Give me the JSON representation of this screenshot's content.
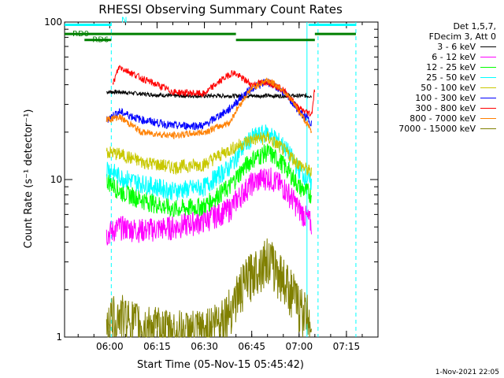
{
  "chart_data": {
    "type": "line",
    "title": "RHESSI Observing Summary Count Rates",
    "xlabel": "Start Time (05-Nov-15 05:45:42)",
    "ylabel": "Count Rate (s⁻¹ detector⁻¹)",
    "x_ticks": [
      "06:00",
      "06:15",
      "06:30",
      "06:45",
      "07:00",
      "07:15"
    ],
    "y_ticks": [
      "1",
      "10",
      "100"
    ],
    "y_scale": "log",
    "ylim": [
      1,
      100
    ],
    "xlim": [
      "05:45:42",
      "07:25:00"
    ],
    "legend_placement": "right",
    "legend_header": [
      "Det 1,5,7,",
      "FDecim 3, Att 0"
    ],
    "series": [
      {
        "name": "3 - 6 keV",
        "color": "#000000",
        "points": [
          [
            "05:59",
            36
          ],
          [
            "06:03",
            36
          ],
          [
            "06:10",
            35
          ],
          [
            "06:20",
            34
          ],
          [
            "06:30",
            34
          ],
          [
            "06:40",
            34
          ],
          [
            "06:50",
            34
          ],
          [
            "07:00",
            34
          ],
          [
            "07:04",
            34
          ]
        ]
      },
      {
        "name": "6 - 12 keV",
        "color": "#ff00ff",
        "points": [
          [
            "05:59",
            4.5
          ],
          [
            "06:03",
            5.0
          ],
          [
            "06:10",
            4.8
          ],
          [
            "06:20",
            5.0
          ],
          [
            "06:30",
            5.5
          ],
          [
            "06:38",
            6.5
          ],
          [
            "06:45",
            9.5
          ],
          [
            "06:50",
            10.5
          ],
          [
            "06:55",
            9.0
          ],
          [
            "07:00",
            6.5
          ],
          [
            "07:04",
            5.2
          ]
        ]
      },
      {
        "name": "12 - 25 keV",
        "color": "#00ff00",
        "points": [
          [
            "05:59",
            10
          ],
          [
            "06:03",
            8.5
          ],
          [
            "06:10",
            7.5
          ],
          [
            "06:20",
            6.5
          ],
          [
            "06:30",
            6.8
          ],
          [
            "06:38",
            9.0
          ],
          [
            "06:45",
            13.5
          ],
          [
            "06:50",
            15.0
          ],
          [
            "06:55",
            12.5
          ],
          [
            "07:00",
            9.0
          ],
          [
            "07:04",
            8.0
          ]
        ]
      },
      {
        "name": "25 - 50 keV",
        "color": "#00ffff",
        "points": [
          [
            "05:59",
            12
          ],
          [
            "06:03",
            10.5
          ],
          [
            "06:10",
            9.5
          ],
          [
            "06:20",
            8.5
          ],
          [
            "06:30",
            9.0
          ],
          [
            "06:38",
            12.0
          ],
          [
            "06:45",
            18.5
          ],
          [
            "06:50",
            20.0
          ],
          [
            "06:55",
            16.5
          ],
          [
            "07:00",
            11.5
          ],
          [
            "07:04",
            9.5
          ]
        ]
      },
      {
        "name": "50 - 100 keV",
        "color": "#c8c800",
        "points": [
          [
            "05:59",
            15
          ],
          [
            "06:03",
            14.5
          ],
          [
            "06:10",
            13.0
          ],
          [
            "06:20",
            12.0
          ],
          [
            "06:30",
            12.5
          ],
          [
            "06:38",
            15.5
          ],
          [
            "06:45",
            18.0
          ],
          [
            "06:50",
            18.5
          ],
          [
            "06:55",
            15.5
          ],
          [
            "07:00",
            12.5
          ],
          [
            "07:04",
            11.0
          ]
        ]
      },
      {
        "name": "100 - 300 keV",
        "color": "#0000ff",
        "points": [
          [
            "05:59",
            24
          ],
          [
            "06:03",
            27
          ],
          [
            "06:10",
            24
          ],
          [
            "06:20",
            22
          ],
          [
            "06:30",
            22
          ],
          [
            "06:38",
            28
          ],
          [
            "06:45",
            38
          ],
          [
            "06:50",
            42
          ],
          [
            "06:55",
            36
          ],
          [
            "07:00",
            27
          ],
          [
            "07:04",
            23
          ]
        ]
      },
      {
        "name": "300 - 800 keV",
        "color": "#ff0000",
        "points": [
          [
            "06:01",
            40
          ],
          [
            "06:03",
            52
          ],
          [
            "06:10",
            44
          ],
          [
            "06:20",
            36
          ],
          [
            "06:30",
            35
          ],
          [
            "06:39",
            48
          ],
          [
            "06:45",
            40
          ],
          [
            "06:50",
            42
          ],
          [
            "06:55",
            37
          ],
          [
            "07:00",
            28
          ],
          [
            "07:04",
            26
          ],
          [
            "07:05",
            38
          ]
        ]
      },
      {
        "name": "800 - 7000 keV",
        "color": "#ff8000",
        "points": [
          [
            "05:59",
            24
          ],
          [
            "06:03",
            25
          ],
          [
            "06:10",
            20
          ],
          [
            "06:20",
            19
          ],
          [
            "06:30",
            20
          ],
          [
            "06:38",
            23
          ],
          [
            "06:45",
            38
          ],
          [
            "06:50",
            43
          ],
          [
            "06:55",
            37
          ],
          [
            "07:00",
            27
          ],
          [
            "07:04",
            20
          ]
        ]
      },
      {
        "name": "7000 - 15000 keV",
        "color": "#808000",
        "points": [
          [
            "05:59",
            1.3
          ],
          [
            "06:03",
            1.4
          ],
          [
            "06:10",
            1.2
          ],
          [
            "06:20",
            1.1
          ],
          [
            "06:30",
            1.1
          ],
          [
            "06:38",
            1.5
          ],
          [
            "06:45",
            2.6
          ],
          [
            "06:50",
            3.2
          ],
          [
            "06:55",
            2.4
          ],
          [
            "07:00",
            1.6
          ],
          [
            "07:04",
            1.3
          ]
        ]
      }
    ],
    "state_bars": [
      {
        "label": "N",
        "color": "#00ffff",
        "segments": [
          [
            "05:45:42",
            "06:00:30"
          ],
          [
            "07:03:00",
            "07:18:00"
          ]
        ],
        "level": 96
      },
      {
        "label": "RD0",
        "color": "#008000",
        "segments": [
          [
            "05:45:42",
            "06:00:30"
          ],
          [
            "06:00:30",
            "06:40:00"
          ],
          [
            "07:05:00",
            "07:18:00"
          ]
        ],
        "level": 84
      },
      {
        "label": "RD6",
        "color": "#008000",
        "segments": [
          [
            "05:52:00",
            "06:00:30"
          ],
          [
            "06:40:00",
            "07:05:00"
          ]
        ],
        "level": 77
      }
    ],
    "vlines": [
      {
        "at": "06:00:30",
        "color": "#00ffff",
        "style": "dashed"
      },
      {
        "at": "07:02:30",
        "color": "#00ffff",
        "style": "solid"
      },
      {
        "at": "07:06:00",
        "color": "#00ffff",
        "style": "dashed"
      },
      {
        "at": "07:18:00",
        "color": "#00ffff",
        "style": "dashed"
      }
    ]
  },
  "footer": "1-Nov-2021 22:05"
}
